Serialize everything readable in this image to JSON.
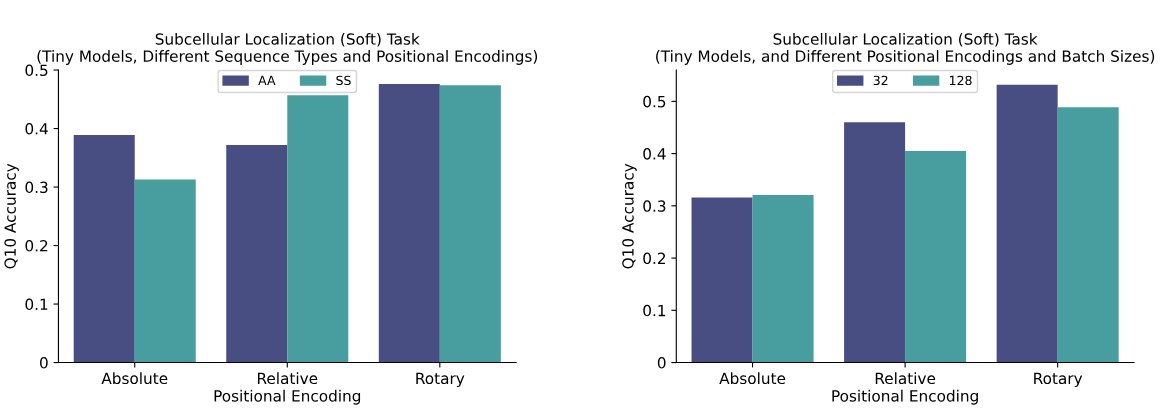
{
  "chart_data": [
    {
      "type": "bar",
      "title": "Subcellular Localization (Soft) Task\n(Tiny Models, Different Sequence Types and Positional Encodings)",
      "xlabel": "Positional Encoding",
      "ylabel": "Q10 Accuracy",
      "categories": [
        "Absolute",
        "Relative",
        "Rotary"
      ],
      "series": [
        {
          "name": "AA",
          "color": "#484e82",
          "values": [
            0.389,
            0.372,
            0.476
          ]
        },
        {
          "name": "SS",
          "color": "#489e9e",
          "values": [
            0.313,
            0.457,
            0.474
          ]
        }
      ],
      "ylim": [
        0,
        0.5
      ],
      "yticks": [
        0,
        0.1,
        0.2,
        0.3,
        0.4,
        0.5
      ],
      "legend": "top",
      "grid": false
    },
    {
      "type": "bar",
      "title": "Subcellular Localization (Soft) Task\n(Tiny Models, and Different Positional Encodings and Batch Sizes)",
      "xlabel": "Positional Encoding",
      "ylabel": "Q10 Accuracy",
      "categories": [
        "Absolute",
        "Relative",
        "Rotary"
      ],
      "series": [
        {
          "name": "32",
          "color": "#484e82",
          "values": [
            0.316,
            0.46,
            0.532
          ]
        },
        {
          "name": "128",
          "color": "#489e9e",
          "values": [
            0.321,
            0.405,
            0.489
          ]
        }
      ],
      "ylim": [
        0,
        0.56
      ],
      "yticks": [
        0,
        0.1,
        0.2,
        0.3,
        0.4,
        0.5
      ],
      "legend": "top",
      "grid": false
    }
  ]
}
